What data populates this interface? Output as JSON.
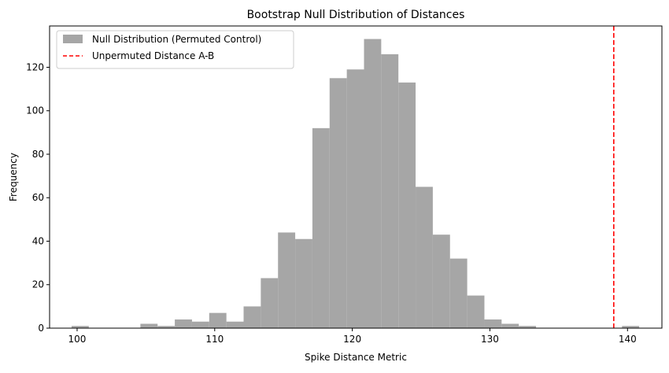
{
  "chart_data": {
    "type": "bar",
    "title": "Bootstrap Null Distribution of Distances",
    "xlabel": "Spike Distance Metric",
    "ylabel": "Frequency",
    "xlim": [
      98,
      142.5
    ],
    "ylim": [
      0,
      139
    ],
    "xticks": [
      100,
      110,
      120,
      130,
      140
    ],
    "yticks": [
      0,
      20,
      40,
      60,
      80,
      100,
      120
    ],
    "legend_position": "upper left",
    "grid": false,
    "series": [
      {
        "name": "Null Distribution (Permuted Control)",
        "kind": "histogram",
        "color": "#a6a6a6",
        "bin_edges": [
          99.6,
          100.85,
          102.1,
          103.35,
          104.6,
          105.85,
          107.1,
          108.35,
          109.6,
          110.85,
          112.1,
          113.35,
          114.6,
          115.85,
          117.1,
          118.35,
          119.6,
          120.85,
          122.1,
          123.35,
          124.6,
          125.85,
          127.1,
          128.35,
          129.6,
          130.85,
          132.1,
          133.35,
          134.6,
          135.85,
          137.1,
          138.35,
          139.6,
          140.85
        ],
        "counts": [
          1,
          0,
          0,
          0,
          2,
          1,
          4,
          3,
          7,
          3,
          10,
          23,
          44,
          41,
          92,
          115,
          119,
          133,
          126,
          113,
          65,
          43,
          32,
          15,
          4,
          2,
          1,
          0,
          0,
          0,
          0,
          0,
          1
        ]
      },
      {
        "name": "Unpermuted Distance A-B",
        "kind": "vline",
        "color": "#ff0000",
        "x": 139.0
      }
    ]
  }
}
